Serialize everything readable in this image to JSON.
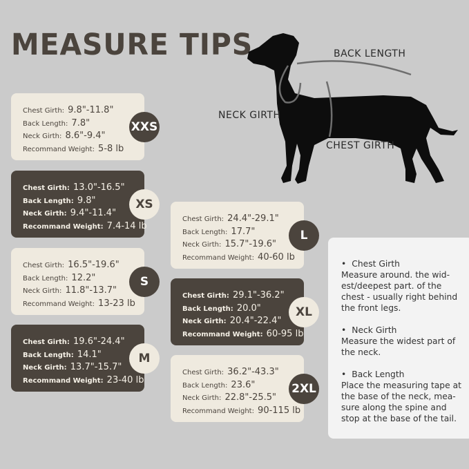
{
  "title": "MEASURE TIPS",
  "diagram_labels": {
    "back_length": "BACK LENGTH",
    "neck_girth": "NECK GIRTH",
    "chest_girth": "CHEST GIRTH"
  },
  "field_labels": {
    "chest": "Chest Girth:",
    "back": "Back Length:",
    "neck": "Neck Girth:",
    "weight": "Recommand Weight:"
  },
  "sizes": [
    {
      "size": "XXS",
      "chest": "9.8\"-11.8\"",
      "back": "7.8\"",
      "neck": "8.6\"-9.4\"",
      "weight": "5-8 lb"
    },
    {
      "size": "XS",
      "chest": "13.0\"-16.5\"",
      "back": "9.8\"",
      "neck": "9.4\"-11.4\"",
      "weight": "7.4-14 lb"
    },
    {
      "size": "S",
      "chest": "16.5\"-19.6\"",
      "back": "12.2\"",
      "neck": "11.8\"-13.7\"",
      "weight": "13-23 lb"
    },
    {
      "size": "M",
      "chest": "19.6\"-24.4\"",
      "back": "14.1\"",
      "neck": "13.7\"-15.7\"",
      "weight": "23-40 lb"
    },
    {
      "size": "L",
      "chest": "24.4\"-29.1\"",
      "back": "17.7\"",
      "neck": "15.7\"-19.6\"",
      "weight": "40-60 lb"
    },
    {
      "size": "XL",
      "chest": "29.1\"-36.2\"",
      "back": "20.0\"",
      "neck": "20.4\"-22.4\"",
      "weight": "60-95 lb"
    },
    {
      "size": "2XL",
      "chest": "36.2\"-43.3\"",
      "back": "23.6\"",
      "neck": "22.8\"-25.5\"",
      "weight": "90-115 lb"
    }
  ],
  "tips": [
    {
      "heading": "Chest Girth",
      "text": "Measure around. the wid-est/deepest part. of the chest - usually right behind the front legs."
    },
    {
      "heading": "Neck Girth",
      "text": "Measure the widest part of the neck."
    },
    {
      "heading": "Back Length",
      "text": "Place the measuring tape at the base of the neck, mea-sure along the spine and stop at the base of the tail."
    }
  ],
  "colors": {
    "background": "#cbcbcb",
    "dark": "#4b443d",
    "light": "#efeadf"
  }
}
